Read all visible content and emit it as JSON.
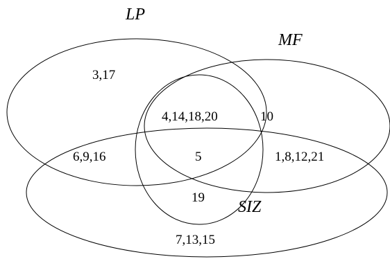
{
  "sets": {
    "lp": "LP",
    "mf": "MF",
    "siz": "SIZ"
  },
  "regions": {
    "lp_only": "3,17",
    "lp_mf": "4,14,18,20",
    "mf_only": "10",
    "lp_siz": "6,9,16",
    "center": "5",
    "mf_siz": "1,8,12,21",
    "siz_below": "19",
    "outer_only": "7,13,15"
  }
}
